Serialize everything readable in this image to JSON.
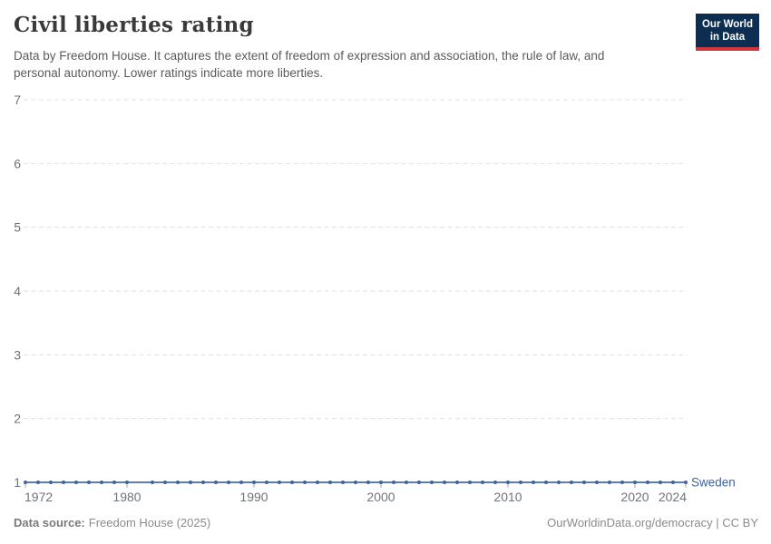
{
  "header": {
    "title": "Civil liberties rating",
    "subtitle_line1": "Data by Freedom House. It captures the extent of freedom of expression and association, the rule of law, and",
    "subtitle_line2": "personal autonomy. Lower ratings indicate more liberties.",
    "logo": {
      "line1": "Our World",
      "line2": "in Data"
    }
  },
  "chart_data": {
    "type": "line",
    "title": "Civil liberties rating",
    "xlabel": "",
    "ylabel": "",
    "x_range": [
      1972,
      2024
    ],
    "y_range": [
      1,
      7
    ],
    "x_ticks": [
      1972,
      1980,
      1990,
      2000,
      2010,
      2020,
      2024
    ],
    "y_ticks": [
      1,
      2,
      3,
      4,
      5,
      6,
      7
    ],
    "grid": "horizontal-dashed",
    "legend_position": "end-of-line-label",
    "note": "No data point for 1981; line is continuous across the gap",
    "colors": {
      "grid": "#e0e0e0",
      "axis_text": "#6f7479",
      "tick": "#a9a9a9"
    },
    "series": [
      {
        "name": "Sweden",
        "color": "#3d63a5",
        "line_color": "#4a6caa",
        "years": [
          1972,
          1973,
          1974,
          1975,
          1976,
          1977,
          1978,
          1979,
          1980,
          1982,
          1983,
          1984,
          1985,
          1986,
          1987,
          1988,
          1989,
          1990,
          1991,
          1992,
          1993,
          1994,
          1995,
          1996,
          1997,
          1998,
          1999,
          2000,
          2001,
          2002,
          2003,
          2004,
          2005,
          2006,
          2007,
          2008,
          2009,
          2010,
          2011,
          2012,
          2013,
          2014,
          2015,
          2016,
          2017,
          2018,
          2019,
          2020,
          2021,
          2022,
          2023,
          2024
        ],
        "values": [
          1,
          1,
          1,
          1,
          1,
          1,
          1,
          1,
          1,
          1,
          1,
          1,
          1,
          1,
          1,
          1,
          1,
          1,
          1,
          1,
          1,
          1,
          1,
          1,
          1,
          1,
          1,
          1,
          1,
          1,
          1,
          1,
          1,
          1,
          1,
          1,
          1,
          1,
          1,
          1,
          1,
          1,
          1,
          1,
          1,
          1,
          1,
          1,
          1,
          1,
          1,
          1
        ]
      }
    ]
  },
  "footer": {
    "source_label": "Data source:",
    "source_value": "Freedom House (2025)",
    "attribution": "OurWorldinData.org/democracy | CC BY"
  }
}
